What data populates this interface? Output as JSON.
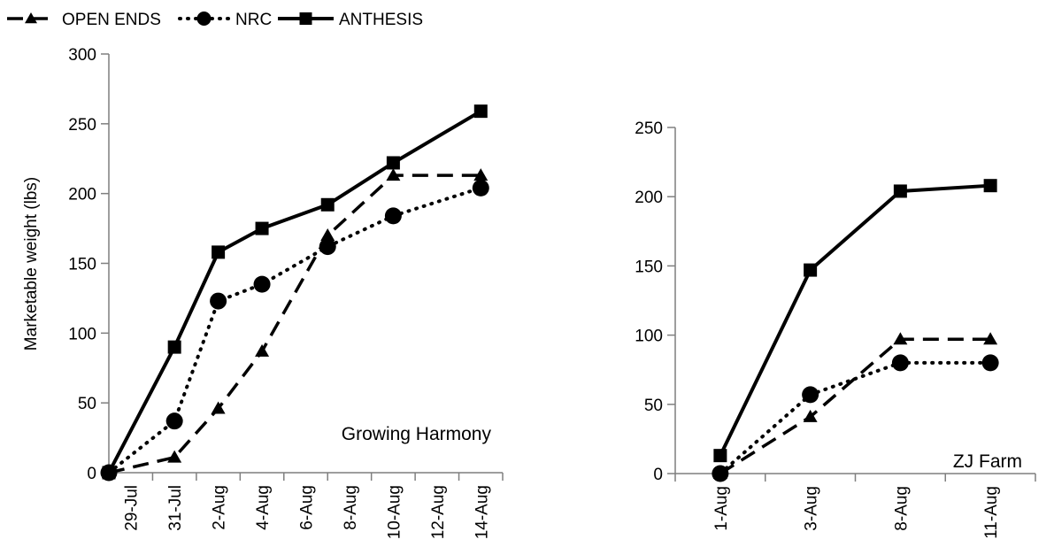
{
  "legend": [
    {
      "name": "OPEN ENDS",
      "style": "dashed",
      "marker": "triangle"
    },
    {
      "name": "NRC",
      "style": "dotted",
      "marker": "circle"
    },
    {
      "name": "ANTHESIS",
      "style": "solid",
      "marker": "square"
    }
  ],
  "colors": {
    "line": "#000000",
    "axis": "#7f7f7f",
    "background": "#ffffff"
  },
  "chart_data": [
    {
      "type": "line",
      "title": "",
      "panel_label": "Growing Harmony",
      "xlabel": "",
      "ylabel": "Marketable weight (lbs)",
      "x_ticks": [
        "29-Jul",
        "31-Jul",
        "2-Aug",
        "4-Aug",
        "6-Aug",
        "8-Aug",
        "10-Aug",
        "12-Aug",
        "14-Aug"
      ],
      "x_range": [
        "29-Jul",
        "16-Aug"
      ],
      "ylim": [
        0,
        300
      ],
      "y_ticks": [
        0,
        50,
        100,
        150,
        200,
        250,
        300
      ],
      "grid": false,
      "legend_position": "top-left",
      "series": [
        {
          "name": "OPEN ENDS",
          "x": [
            "29-Jul",
            "1-Aug",
            "3-Aug",
            "5-Aug",
            "8-Aug",
            "11-Aug",
            "15-Aug"
          ],
          "y": [
            0,
            11,
            46,
            87,
            170,
            213,
            213
          ]
        },
        {
          "name": "NRC",
          "x": [
            "29-Jul",
            "1-Aug",
            "3-Aug",
            "5-Aug",
            "8-Aug",
            "11-Aug",
            "15-Aug"
          ],
          "y": [
            0,
            37,
            123,
            135,
            162,
            184,
            204
          ]
        },
        {
          "name": "ANTHESIS",
          "x": [
            "29-Jul",
            "1-Aug",
            "3-Aug",
            "5-Aug",
            "8-Aug",
            "11-Aug",
            "15-Aug"
          ],
          "y": [
            0,
            90,
            158,
            175,
            192,
            222,
            259
          ]
        }
      ]
    },
    {
      "type": "line",
      "title": "",
      "panel_label": "ZJ Farm",
      "xlabel": "",
      "ylabel": "",
      "categories": [
        "1-Aug",
        "3-Aug",
        "8-Aug",
        "11-Aug"
      ],
      "ylim": [
        0,
        250
      ],
      "y_ticks": [
        0,
        50,
        100,
        150,
        200,
        250
      ],
      "grid": false,
      "series": [
        {
          "name": "OPEN ENDS",
          "values": [
            0,
            41,
            97,
            97
          ]
        },
        {
          "name": "NRC",
          "values": [
            0,
            57,
            80,
            80
          ]
        },
        {
          "name": "ANTHESIS",
          "values": [
            13,
            147,
            204,
            208
          ]
        }
      ]
    }
  ]
}
